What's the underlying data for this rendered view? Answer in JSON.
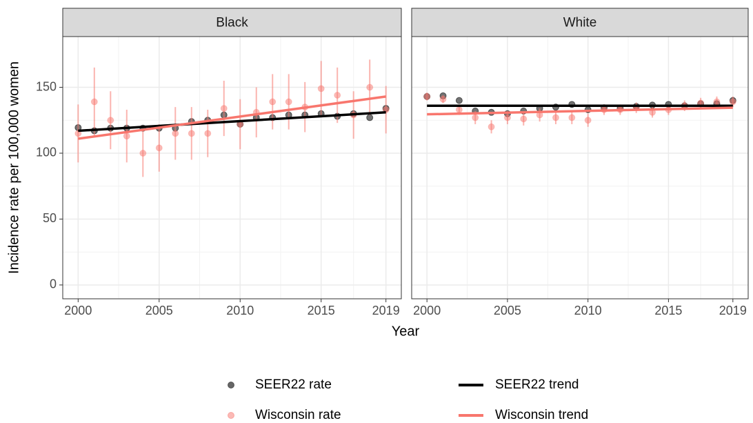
{
  "chart_data": [
    {
      "type": "scatter",
      "title": "Black",
      "xlabel": "Year",
      "ylabel": "Incidence rate per 100,000 women",
      "x": [
        2000,
        2001,
        2002,
        2003,
        2004,
        2005,
        2006,
        2007,
        2008,
        2009,
        2010,
        2011,
        2012,
        2013,
        2014,
        2015,
        2016,
        2017,
        2018,
        2019
      ],
      "xlim": [
        1999.05,
        2019.95
      ],
      "xticks": [
        2000,
        2005,
        2010,
        2015,
        2019
      ],
      "ylim": [
        -10.5,
        188.5
      ],
      "yticks": [
        0,
        50,
        100,
        150
      ],
      "grid": true,
      "series": [
        {
          "name": "SEER22 rate",
          "mark": "point",
          "color": "#000000",
          "values": [
            119.4,
            117,
            119,
            119,
            119,
            119,
            119,
            124,
            125,
            129,
            122,
            127,
            127,
            129,
            129,
            130,
            128,
            130,
            127,
            134
          ]
        },
        {
          "name": "Wisconsin rate",
          "mark": "point",
          "color": "#f8766d",
          "values": [
            115,
            139,
            125,
            113,
            100,
            104,
            115,
            115,
            115,
            134,
            122,
            131,
            139,
            139,
            135,
            149,
            144,
            129,
            150,
            133
          ],
          "errors": [
            22,
            26,
            22,
            20,
            18,
            18,
            20,
            20,
            18,
            21,
            19,
            19,
            21,
            21,
            19,
            21,
            21,
            18,
            21,
            18
          ]
        },
        {
          "name": "SEER22 trend",
          "mark": "line",
          "color": "#000000",
          "x": [
            2000,
            2019
          ],
          "values": [
            117,
            131
          ]
        },
        {
          "name": "Wisconsin trend",
          "mark": "line",
          "color": "#f8766d",
          "x": [
            2000,
            2019
          ],
          "values": [
            111,
            143
          ]
        }
      ]
    },
    {
      "type": "scatter",
      "title": "White",
      "x": [
        2000,
        2001,
        2002,
        2003,
        2004,
        2005,
        2006,
        2007,
        2008,
        2009,
        2010,
        2011,
        2012,
        2013,
        2014,
        2015,
        2016,
        2017,
        2018,
        2019
      ],
      "xlim": [
        1999.05,
        2019.95
      ],
      "xticks": [
        2000,
        2005,
        2010,
        2015,
        2019
      ],
      "ylim": [
        -10.5,
        188.5
      ],
      "yticks": [
        0,
        50,
        100,
        150
      ],
      "grid": true,
      "series": [
        {
          "mark": "point",
          "color": "#000000",
          "values": [
            143,
            143.5,
            140,
            132,
            131,
            130,
            132,
            134,
            135,
            137,
            133,
            134.5,
            134,
            135.5,
            136.5,
            137,
            136,
            137.5,
            137.5,
            140
          ]
        },
        {
          "mark": "point",
          "color": "#f8766d",
          "values": [
            143,
            141,
            133,
            127,
            120,
            127,
            126,
            129,
            127,
            127,
            125,
            133,
            133,
            134.5,
            131,
            133,
            136,
            138,
            139,
            139
          ],
          "errors": [
            3,
            3,
            4,
            5,
            5,
            5,
            5,
            5,
            5,
            5,
            5,
            4,
            4,
            4,
            4,
            4,
            4,
            4,
            4,
            4
          ]
        },
        {
          "mark": "line",
          "color": "#000000",
          "x": [
            2000,
            2019
          ],
          "values": [
            136,
            136
          ]
        },
        {
          "mark": "line",
          "color": "#f8766d",
          "x": [
            2000,
            2019
          ],
          "values": [
            129.5,
            134.5
          ]
        }
      ]
    }
  ]
}
